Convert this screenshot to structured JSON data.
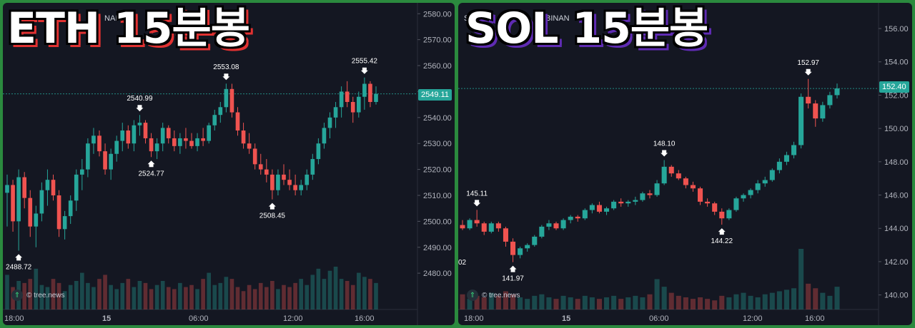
{
  "overlay_titles": {
    "eth": "ETH 15분봉",
    "sol": "SOL 15분봉"
  },
  "headers": {
    "eth": "NAI",
    "sol_left": "S",
    "sol_right": "BINAN"
  },
  "watermark": "© tree.news",
  "colors": {
    "up": "#26a69a",
    "down": "#ef5350",
    "bg": "#141722",
    "frame": "#2b8a3e"
  },
  "chart_data": [
    {
      "type": "candlestick",
      "symbol": "ETH",
      "interval": "15분봉",
      "current_price": "2549.11",
      "ylim": [
        2474,
        2582
      ],
      "y_ticks": [
        "2580.00",
        "2570.00",
        "2560.00",
        "2550.00",
        "2540.00",
        "2530.00",
        "2520.00",
        "2510.00",
        "2500.00",
        "2490.00",
        "2480.00"
      ],
      "x_ticks": [
        "18:00",
        "15",
        "06:00",
        "12:00",
        "16:00"
      ],
      "annotations": [
        {
          "label": "2488.72",
          "type": "low",
          "value": 2488.72
        },
        {
          "label": "2540.99",
          "type": "high",
          "value": 2540.99
        },
        {
          "label": "2524.77",
          "type": "low",
          "value": 2524.77
        },
        {
          "label": "2553.08",
          "type": "high",
          "value": 2553.08
        },
        {
          "label": "2508.45",
          "type": "low",
          "value": 2508.45
        },
        {
          "label": "2555.42",
          "type": "high",
          "value": 2555.42
        }
      ],
      "candles": [
        [
          2511,
          2518,
          2498,
          2514
        ],
        [
          2514,
          2516,
          2496,
          2500
        ],
        [
          2500,
          2520,
          2488.72,
          2517
        ],
        [
          2517,
          2519,
          2505,
          2509
        ],
        [
          2509,
          2512,
          2494,
          2498
        ],
        [
          2498,
          2506,
          2490,
          2503
        ],
        [
          2503,
          2515,
          2500,
          2512
        ],
        [
          2512,
          2520,
          2506,
          2516
        ],
        [
          2516,
          2518,
          2508,
          2510
        ],
        [
          2510,
          2512,
          2494,
          2497
        ],
        [
          2497,
          2504,
          2493,
          2502
        ],
        [
          2502,
          2510,
          2499,
          2508
        ],
        [
          2508,
          2520,
          2504,
          2518
        ],
        [
          2518,
          2524,
          2512,
          2520
        ],
        [
          2520,
          2532,
          2517,
          2530
        ],
        [
          2530,
          2536,
          2526,
          2533
        ],
        [
          2533,
          2535,
          2525,
          2527
        ],
        [
          2527,
          2530,
          2518,
          2520
        ],
        [
          2520,
          2528,
          2516,
          2526
        ],
        [
          2526,
          2533,
          2523,
          2531
        ],
        [
          2531,
          2538,
          2527,
          2535
        ],
        [
          2535,
          2537,
          2528,
          2530
        ],
        [
          2530,
          2539,
          2527,
          2537
        ],
        [
          2537,
          2540.99,
          2533,
          2538
        ],
        [
          2538,
          2539,
          2530,
          2532
        ],
        [
          2532,
          2534,
          2524.77,
          2527
        ],
        [
          2527,
          2532,
          2524,
          2530
        ],
        [
          2530,
          2538,
          2527,
          2536
        ],
        [
          2536,
          2537,
          2530,
          2532
        ],
        [
          2532,
          2535,
          2527,
          2529
        ],
        [
          2529,
          2534,
          2526,
          2532
        ],
        [
          2532,
          2536,
          2528,
          2531
        ],
        [
          2531,
          2534,
          2528,
          2529
        ],
        [
          2529,
          2534,
          2527,
          2532
        ],
        [
          2532,
          2536,
          2529,
          2531
        ],
        [
          2531,
          2538,
          2530,
          2537
        ],
        [
          2537,
          2543,
          2535,
          2541
        ],
        [
          2541,
          2546,
          2538,
          2544
        ],
        [
          2544,
          2553.08,
          2542,
          2551
        ],
        [
          2551,
          2553,
          2540,
          2542
        ],
        [
          2542,
          2544,
          2533,
          2535
        ],
        [
          2535,
          2538,
          2528,
          2530
        ],
        [
          2530,
          2534,
          2526,
          2528
        ],
        [
          2528,
          2530,
          2520,
          2522
        ],
        [
          2522,
          2526,
          2518,
          2520
        ],
        [
          2520,
          2524,
          2515,
          2518
        ],
        [
          2518,
          2520,
          2508.45,
          2512
        ],
        [
          2512,
          2520,
          2510,
          2518
        ],
        [
          2518,
          2522,
          2514,
          2516
        ],
        [
          2516,
          2520,
          2512,
          2514
        ],
        [
          2514,
          2518,
          2510,
          2512
        ],
        [
          2512,
          2516,
          2510,
          2514
        ],
        [
          2514,
          2520,
          2512,
          2518
        ],
        [
          2518,
          2526,
          2516,
          2524
        ],
        [
          2524,
          2532,
          2522,
          2530
        ],
        [
          2530,
          2538,
          2528,
          2536
        ],
        [
          2536,
          2542,
          2532,
          2540
        ],
        [
          2540,
          2546,
          2536,
          2544
        ],
        [
          2544,
          2552,
          2540,
          2550
        ],
        [
          2550,
          2554,
          2544,
          2546
        ],
        [
          2546,
          2548,
          2538,
          2542
        ],
        [
          2542,
          2550,
          2540,
          2548
        ],
        [
          2548,
          2555.42,
          2543,
          2553
        ],
        [
          2553,
          2554,
          2544,
          2546
        ],
        [
          2546,
          2552,
          2545,
          2549.11
        ]
      ],
      "volumes": [
        34,
        22,
        28,
        26,
        30,
        40,
        24,
        22,
        30,
        26,
        18,
        24,
        28,
        36,
        26,
        22,
        30,
        34,
        24,
        20,
        26,
        30,
        22,
        28,
        26,
        20,
        24,
        28,
        22,
        20,
        26,
        22,
        24,
        20,
        30,
        36,
        24,
        26,
        32,
        30,
        22,
        18,
        24,
        20,
        26,
        22,
        28,
        20,
        24,
        22,
        26,
        30,
        24,
        34,
        40,
        30,
        38,
        42,
        30,
        28,
        24,
        36,
        32,
        30,
        26
      ]
    },
    {
      "type": "candlestick",
      "symbol": "SOL",
      "interval": "15분봉",
      "current_price": "152.40",
      "ylim": [
        139.3,
        157.2
      ],
      "y_ticks": [
        "156.00",
        "154.00",
        "152.00",
        "150.00",
        "148.00",
        "146.00",
        "144.00",
        "142.00",
        "140.00"
      ],
      "x_ticks": [
        "18:00",
        "15",
        "06:00",
        "12:00",
        "16:00"
      ],
      "annotations": [
        {
          "label": "145.11",
          "type": "high",
          "value": 145.11
        },
        {
          "label": "141.97",
          "type": "low",
          "value": 141.97
        },
        {
          "label": "148.10",
          "type": "high",
          "value": 148.1
        },
        {
          "label": "144.22",
          "type": "low",
          "value": 144.22
        },
        {
          "label": "152.97",
          "type": "high",
          "value": 152.97
        }
      ],
      "left_edge_label": "02",
      "candles": [
        [
          144.2,
          144.5,
          143.9,
          144.0
        ],
        [
          144.0,
          144.6,
          143.9,
          144.5
        ],
        [
          144.5,
          145.11,
          144.1,
          144.3
        ],
        [
          144.3,
          144.4,
          143.6,
          143.8
        ],
        [
          143.8,
          144.4,
          143.7,
          144.3
        ],
        [
          144.3,
          144.4,
          143.8,
          144.0
        ],
        [
          144.0,
          144.1,
          142.9,
          143.2
        ],
        [
          143.2,
          143.4,
          141.97,
          142.4
        ],
        [
          142.4,
          142.9,
          142.2,
          142.8
        ],
        [
          142.8,
          143.1,
          142.6,
          143.0
        ],
        [
          143.0,
          143.6,
          142.9,
          143.5
        ],
        [
          143.5,
          144.2,
          143.4,
          144.1
        ],
        [
          144.1,
          144.5,
          143.9,
          144.3
        ],
        [
          144.3,
          144.4,
          143.9,
          144.0
        ],
        [
          144.0,
          144.6,
          143.9,
          144.5
        ],
        [
          144.5,
          144.8,
          144.3,
          144.7
        ],
        [
          144.7,
          144.8,
          144.4,
          144.6
        ],
        [
          144.6,
          145.2,
          144.5,
          145.1
        ],
        [
          145.1,
          145.5,
          144.9,
          145.4
        ],
        [
          145.4,
          145.6,
          144.9,
          145.0
        ],
        [
          145.0,
          145.3,
          144.8,
          145.2
        ],
        [
          145.2,
          145.7,
          145.1,
          145.6
        ],
        [
          145.6,
          145.8,
          145.3,
          145.5
        ],
        [
          145.5,
          145.7,
          145.3,
          145.6
        ],
        [
          145.6,
          145.9,
          145.4,
          145.7
        ],
        [
          145.7,
          146.2,
          145.6,
          146.1
        ],
        [
          146.1,
          146.3,
          145.8,
          146.0
        ],
        [
          146.0,
          146.9,
          145.9,
          146.7
        ],
        [
          146.7,
          148.1,
          146.6,
          147.7
        ],
        [
          147.7,
          147.8,
          147.1,
          147.3
        ],
        [
          147.3,
          147.5,
          146.9,
          147.0
        ],
        [
          147.0,
          147.1,
          146.4,
          146.6
        ],
        [
          146.6,
          146.8,
          146.2,
          146.4
        ],
        [
          146.4,
          146.5,
          145.4,
          145.6
        ],
        [
          145.6,
          145.8,
          145.3,
          145.5
        ],
        [
          145.5,
          145.6,
          144.8,
          145.0
        ],
        [
          145.0,
          145.2,
          144.22,
          144.6
        ],
        [
          144.6,
          145.2,
          144.5,
          145.1
        ],
        [
          145.1,
          145.9,
          145.0,
          145.8
        ],
        [
          145.8,
          146.1,
          145.6,
          146.0
        ],
        [
          146.0,
          146.4,
          145.8,
          146.3
        ],
        [
          146.3,
          146.9,
          146.1,
          146.7
        ],
        [
          146.7,
          147.1,
          146.5,
          146.9
        ],
        [
          146.9,
          147.6,
          146.8,
          147.5
        ],
        [
          147.5,
          148.2,
          147.3,
          148.0
        ],
        [
          148.0,
          148.6,
          147.8,
          148.4
        ],
        [
          148.4,
          149.2,
          148.2,
          149.0
        ],
        [
          149.0,
          152.1,
          148.8,
          151.9
        ],
        [
          151.9,
          152.97,
          151.2,
          151.5
        ],
        [
          151.5,
          151.7,
          150.1,
          150.6
        ],
        [
          150.6,
          151.6,
          150.4,
          151.4
        ],
        [
          151.4,
          152.2,
          151.2,
          152.0
        ],
        [
          152.0,
          152.7,
          151.8,
          152.4
        ]
      ],
      "volumes": [
        20,
        14,
        18,
        16,
        22,
        18,
        24,
        20,
        16,
        14,
        18,
        20,
        16,
        14,
        18,
        16,
        14,
        18,
        16,
        14,
        16,
        18,
        14,
        16,
        18,
        16,
        20,
        40,
        30,
        22,
        18,
        16,
        14,
        16,
        14,
        12,
        18,
        16,
        20,
        22,
        18,
        16,
        20,
        22,
        24,
        26,
        28,
        80,
        34,
        28,
        22,
        18,
        30
      ]
    }
  ]
}
